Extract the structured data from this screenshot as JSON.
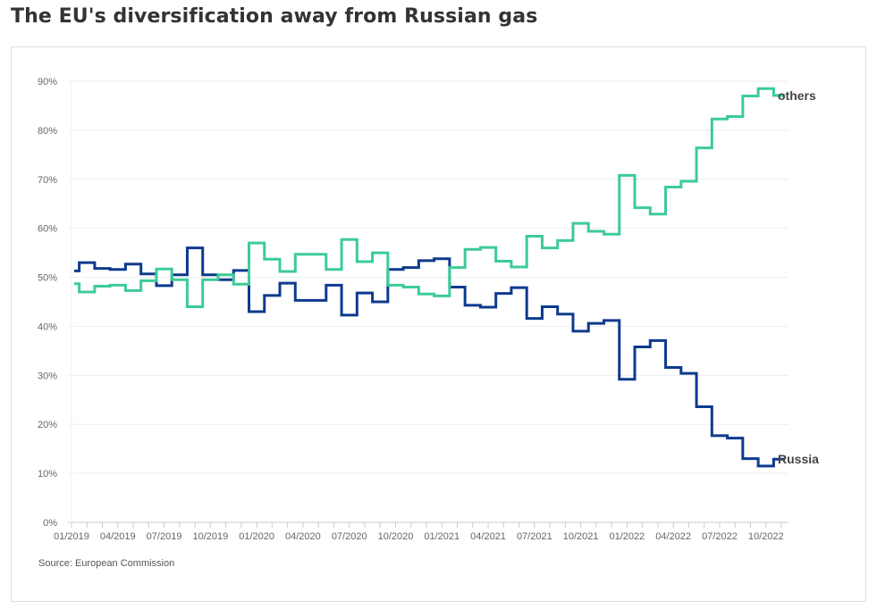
{
  "title": "The EU's diversification away from Russian gas",
  "source": "Source: European Commission",
  "colors": {
    "Russia": "#0e3a8f",
    "others": "#3ccb97",
    "grid": "#eeeeee",
    "axis": "#cccccc"
  },
  "chart_data": {
    "type": "line",
    "title": "The EU's diversification away from Russian gas",
    "step": true,
    "grid": true,
    "legend": "end-of-line labels",
    "ylim": [
      0,
      90
    ],
    "yticks": [
      0,
      10,
      20,
      30,
      40,
      50,
      60,
      70,
      80,
      90
    ],
    "ytick_labels": [
      "0%",
      "10%",
      "20%",
      "30%",
      "40%",
      "50%",
      "60%",
      "70%",
      "80%",
      "90%"
    ],
    "xtick_labels": [
      "01/2019",
      "04/2019",
      "07/2019",
      "10/2019",
      "01/2020",
      "04/2020",
      "07/2020",
      "10/2020",
      "01/2021",
      "04/2021",
      "07/2021",
      "10/2021",
      "01/2022",
      "04/2022",
      "07/2022",
      "10/2022"
    ],
    "x": [
      "01/2019",
      "02/2019",
      "03/2019",
      "04/2019",
      "05/2019",
      "06/2019",
      "07/2019",
      "08/2019",
      "09/2019",
      "10/2019",
      "11/2019",
      "12/2019",
      "01/2020",
      "02/2020",
      "03/2020",
      "04/2020",
      "05/2020",
      "06/2020",
      "07/2020",
      "08/2020",
      "09/2020",
      "10/2020",
      "11/2020",
      "12/2020",
      "01/2021",
      "02/2021",
      "03/2021",
      "04/2021",
      "05/2021",
      "06/2021",
      "07/2021",
      "08/2021",
      "09/2021",
      "10/2021",
      "11/2021",
      "12/2021",
      "01/2022",
      "02/2022",
      "03/2022",
      "04/2022",
      "05/2022",
      "06/2022",
      "07/2022",
      "08/2022",
      "09/2022",
      "10/2022",
      "11/2022"
    ],
    "series": [
      {
        "name": "Russia",
        "values": [
          51.3,
          53.0,
          51.8,
          51.6,
          52.7,
          50.7,
          48.3,
          50.5,
          56.0,
          50.5,
          49.5,
          51.4,
          43.0,
          46.3,
          48.8,
          45.3,
          45.3,
          48.4,
          42.3,
          46.8,
          45.0,
          51.6,
          52.0,
          53.4,
          53.8,
          48.0,
          44.3,
          43.9,
          46.7,
          47.9,
          41.6,
          44.0,
          42.5,
          39.0,
          40.6,
          41.2,
          29.2,
          35.8,
          37.1,
          31.6,
          30.4,
          23.6,
          17.7,
          17.2,
          13.0,
          11.5,
          12.9
        ]
      },
      {
        "name": "others",
        "values": [
          48.7,
          47.0,
          48.2,
          48.4,
          47.3,
          49.3,
          51.7,
          49.5,
          44.0,
          49.5,
          50.5,
          48.6,
          57.0,
          53.7,
          51.2,
          54.7,
          54.7,
          51.6,
          57.7,
          53.2,
          55.0,
          48.4,
          48.0,
          46.6,
          46.2,
          52.0,
          55.7,
          56.1,
          53.3,
          52.1,
          58.4,
          56.0,
          57.5,
          61.0,
          59.4,
          58.8,
          70.8,
          64.2,
          62.9,
          68.4,
          69.6,
          76.4,
          82.3,
          82.8,
          87.0,
          88.5,
          87.1
        ]
      }
    ]
  }
}
